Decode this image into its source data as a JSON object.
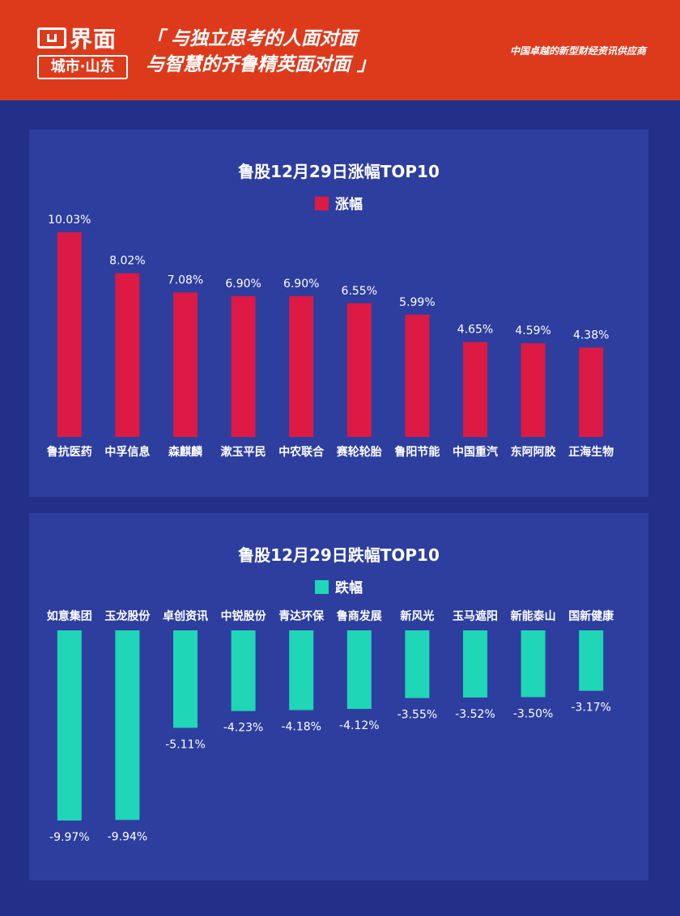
{
  "header": {
    "logo_text": "界面",
    "logo_sub": "城市·山东",
    "slogan_line1": "「 与独立思考的人面对面",
    "slogan_line2": "与智慧的齐鲁精英面对面 」",
    "tagline": "中国卓越的新型财经资讯供应商",
    "bg_color": "#dd3a1c"
  },
  "chart_data": [
    {
      "type": "bar",
      "title": "鲁股12月29日涨幅TOP10",
      "legend": "涨幅",
      "color": "#dc1a43",
      "categories": [
        "鲁抗医药",
        "中孚信息",
        "森麒麟",
        "漱玉平民",
        "中农联合",
        "赛轮轮胎",
        "鲁阳节能",
        "中国重汽",
        "东阿阿胶",
        "正海生物"
      ],
      "values": [
        10.03,
        8.02,
        7.08,
        6.9,
        6.9,
        6.55,
        5.99,
        4.65,
        4.59,
        4.38
      ],
      "labels": [
        "10.03%",
        "8.02%",
        "7.08%",
        "6.90%",
        "6.90%",
        "6.55%",
        "5.99%",
        "4.65%",
        "4.59%",
        "4.38%"
      ]
    },
    {
      "type": "bar",
      "title": "鲁股12月29日跌幅TOP10",
      "legend": "跌幅",
      "color": "#1fd6b6",
      "categories": [
        "如意集团",
        "玉龙股份",
        "卓创资讯",
        "中锐股份",
        "青达环保",
        "鲁商发展",
        "新风光",
        "玉马遮阳",
        "新能泰山",
        "国新健康"
      ],
      "values": [
        -9.97,
        -9.94,
        -5.11,
        -4.23,
        -4.18,
        -4.12,
        -3.55,
        -3.52,
        -3.5,
        -3.17
      ],
      "labels": [
        "-9.97%",
        "-9.94%",
        "-5.11%",
        "-4.23%",
        "-4.18%",
        "-4.12%",
        "-3.55%",
        "-3.52%",
        "-3.50%",
        "-3.17%"
      ]
    }
  ]
}
